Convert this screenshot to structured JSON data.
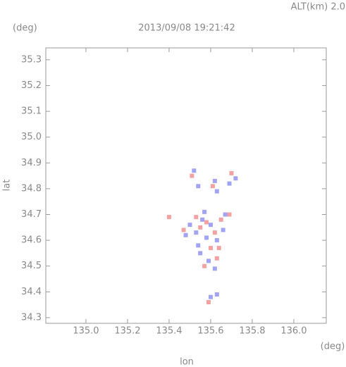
{
  "chart_data": {
    "type": "scatter",
    "title": "2013/09/08 19:21:42",
    "annotation": "ALT(km) 2.0",
    "y_unit": "(deg)",
    "x_unit": "(deg)",
    "x_label": "lon",
    "y_label": "lat",
    "xlim": [
      134.807,
      136.156
    ],
    "ylim": [
      34.278,
      35.346
    ],
    "xticks": [
      {
        "value": 135,
        "label": "135.0"
      },
      135.2,
      135.4,
      135.6,
      135.8,
      {
        "value": 136,
        "label": "136.0"
      }
    ],
    "yticks": [
      34.3,
      34.4,
      34.5,
      34.6,
      34.7,
      34.8,
      34.9,
      {
        "value": 35,
        "label": "35.0"
      },
      35.1,
      35.2,
      35.3
    ],
    "series": [
      {
        "color": "#8a8cf0",
        "x": [
          135.52,
          135.54,
          135.62,
          135.63,
          135.69,
          135.72,
          135.5,
          135.53,
          135.56,
          135.58,
          135.6,
          135.63,
          135.66,
          135.55,
          135.59,
          135.62,
          135.6,
          135.63,
          135.48,
          135.67,
          135.57,
          135.54
        ],
        "values": [
          34.87,
          34.81,
          34.83,
          34.79,
          34.82,
          34.84,
          34.66,
          34.63,
          34.68,
          34.61,
          34.66,
          34.6,
          34.64,
          34.55,
          34.52,
          34.49,
          34.38,
          34.39,
          34.62,
          34.7,
          34.71,
          34.58
        ]
      },
      {
        "color": "#f08a8a",
        "x": [
          135.51,
          135.61,
          135.7,
          135.4,
          135.47,
          135.55,
          135.58,
          135.62,
          135.65,
          135.6,
          135.57,
          135.63,
          135.59,
          135.69,
          135.53,
          135.64
        ],
        "values": [
          34.85,
          34.81,
          34.86,
          34.69,
          34.64,
          34.65,
          34.67,
          34.63,
          34.68,
          34.57,
          34.5,
          34.53,
          34.36,
          34.7,
          34.69,
          34.57
        ]
      }
    ]
  }
}
